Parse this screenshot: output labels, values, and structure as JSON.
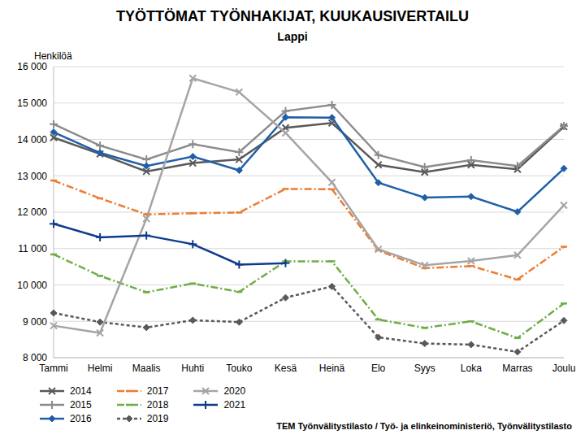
{
  "chart_data": {
    "type": "line",
    "title": "TYÖTTÖMAT TYÖNHAKIJAT, KUUKAUSIVERTAILU",
    "subtitle": "Lappi",
    "y_label": "Henkilöä",
    "source": "TEM Työnvälitystilasto / Työ- ja elinkeinoministeriö, Työnvälitystilasto",
    "categories": [
      "Tammi",
      "Helmi",
      "Maalis",
      "Huhti",
      "Touko",
      "Kesä",
      "Heinä",
      "Elo",
      "Syys",
      "Loka",
      "Marras",
      "Joulu"
    ],
    "ylim": [
      8000,
      16000
    ],
    "yticks": [
      {
        "value": 8000,
        "label": "8 000"
      },
      {
        "value": 9000,
        "label": "9 000"
      },
      {
        "value": 10000,
        "label": "10 000"
      },
      {
        "value": 11000,
        "label": "11 000"
      },
      {
        "value": 12000,
        "label": "12 000"
      },
      {
        "value": 13000,
        "label": "13 000"
      },
      {
        "value": 14000,
        "label": "14 000"
      },
      {
        "value": 15000,
        "label": "15 000"
      },
      {
        "value": 16000,
        "label": "16 000"
      }
    ],
    "grid": true,
    "legend": "bottom",
    "series": [
      {
        "name": "2014",
        "color": "#595959",
        "marker": "x",
        "line_style": "solid",
        "values": [
          14050,
          13600,
          13120,
          13350,
          13450,
          14320,
          14450,
          13300,
          13100,
          13300,
          13180,
          14350
        ]
      },
      {
        "name": "2015",
        "color": "#8c8c8c",
        "marker": "plus",
        "line_style": "solid",
        "values": [
          14420,
          13830,
          13450,
          13870,
          13650,
          14780,
          14950,
          13570,
          13240,
          13430,
          13270,
          14370
        ]
      },
      {
        "name": "2016",
        "color": "#1f5fa8",
        "marker": "diamond",
        "line_style": "solid",
        "values": [
          14200,
          13630,
          13270,
          13530,
          13150,
          14610,
          14600,
          12810,
          12400,
          12430,
          12010,
          13200
        ]
      },
      {
        "name": "2017",
        "color": "#ed7d31",
        "marker": "dash",
        "line_style": "dashdot",
        "values": [
          12870,
          12380,
          11940,
          11970,
          11990,
          12640,
          12630,
          10950,
          10460,
          10520,
          10150,
          11050
        ]
      },
      {
        "name": "2018",
        "color": "#70ad47",
        "marker": "dash",
        "line_style": "dashdot",
        "values": [
          10840,
          10250,
          9800,
          10040,
          9810,
          10650,
          10650,
          9050,
          8820,
          9000,
          8540,
          9490
        ]
      },
      {
        "name": "2019",
        "color": "#595959",
        "marker": "diamond",
        "line_style": "dashed",
        "values": [
          9230,
          8980,
          8830,
          9030,
          8980,
          9650,
          9960,
          8560,
          8390,
          8360,
          8160,
          9020
        ]
      },
      {
        "name": "2020",
        "color": "#a5a5a5",
        "marker": "x",
        "line_style": "solid",
        "values": [
          8880,
          8680,
          11820,
          15680,
          15300,
          14180,
          12820,
          10980,
          10540,
          10660,
          10820,
          12190
        ]
      },
      {
        "name": "2021",
        "color": "#0d3b8c",
        "marker": "plus",
        "line_style": "solid",
        "values": [
          11680,
          11310,
          11360,
          11120,
          10560,
          10600,
          null,
          null,
          null,
          null,
          null,
          null
        ]
      }
    ]
  }
}
